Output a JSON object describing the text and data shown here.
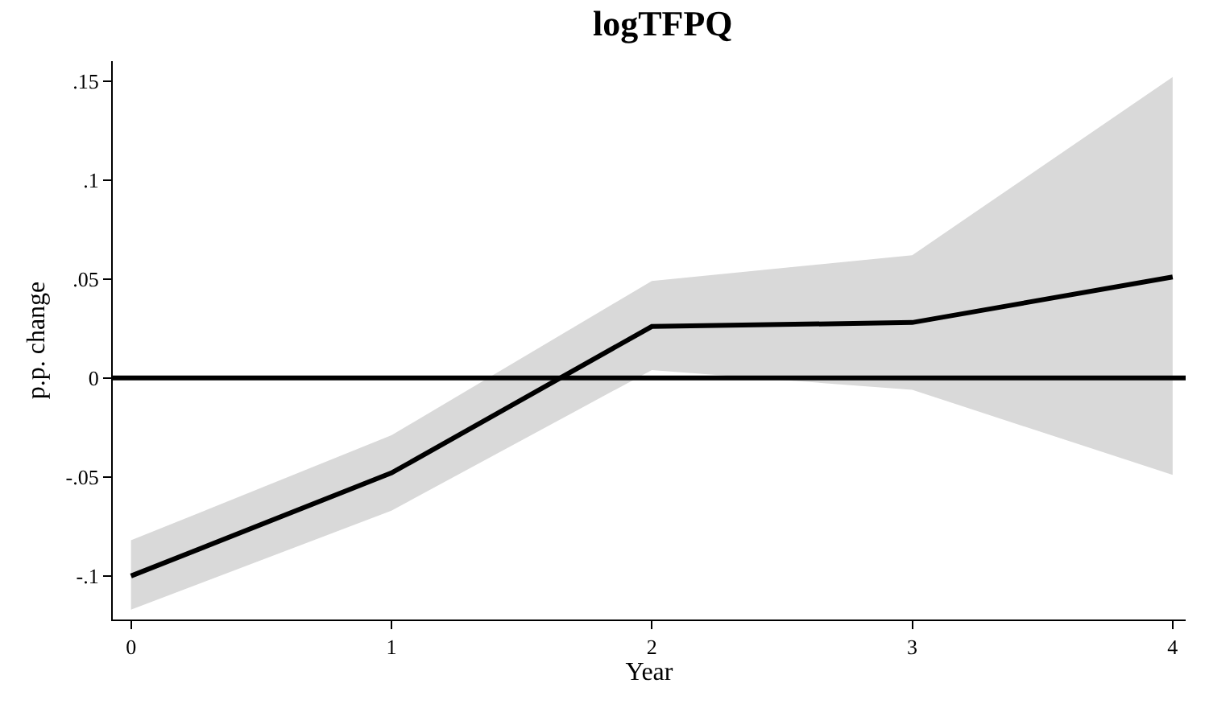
{
  "chart_data": {
    "type": "line",
    "title": "logTFPQ",
    "xlabel": "Year",
    "ylabel": "p.p. change",
    "x": [
      0,
      1,
      2,
      3,
      4
    ],
    "series": [
      {
        "color": "#000000",
        "values": [
          -0.1,
          -0.048,
          0.026,
          0.028,
          0.051
        ],
        "lower": [
          -0.117,
          -0.067,
          0.004,
          -0.006,
          -0.049
        ],
        "upper": [
          -0.082,
          -0.029,
          0.049,
          0.062,
          0.152
        ]
      }
    ],
    "xlim": [
      -0.07,
      4.05
    ],
    "ylim": [
      -0.122,
      0.16
    ],
    "xticks": [
      0,
      1,
      2,
      3,
      4
    ],
    "yticks": [
      {
        "value": -0.1,
        "label": "-.1"
      },
      {
        "value": -0.05,
        "label": "-.05"
      },
      {
        "value": 0,
        "label": "0"
      },
      {
        "value": 0.05,
        "label": ".05"
      },
      {
        "value": 0.1,
        "label": ".1"
      },
      {
        "value": 0.15,
        "label": ".15"
      }
    ],
    "ref_lines": [
      {
        "axis": "y",
        "value": 0,
        "color": "#000000"
      }
    ],
    "marker": "none",
    "line_style": "solid"
  }
}
